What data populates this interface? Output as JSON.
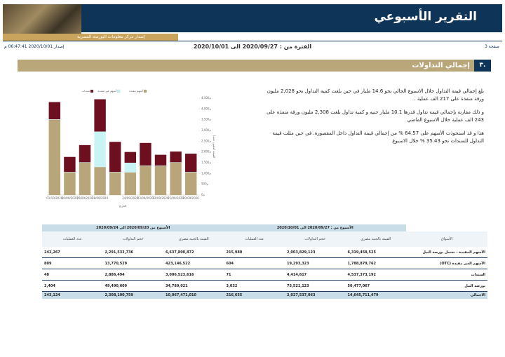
{
  "header": {
    "title": "التقرير الأسبوعي",
    "subtitle": "إصدار مركز معلومات البورصة المصرية",
    "page": "صفحة 3",
    "period": "الفترة من : 2020/09/27 الى 2020/10/01",
    "issued": "إصدار 2020/10/01 06:47:41 م"
  },
  "section": {
    "number": "٣.",
    "title": "إجمالي التداولات"
  },
  "paragraphs": [
    "بلغ إجمالي قيمة التداول خلال الاسبوع الحالي نحو 14.6 مليار في حين بلغت كمية التداول نحو 2,028 مليون ورقة منفذة على 217 الف عملية .",
    "و ذلك مقارنة بإجمالي قيمة تداول قدرها 10.1 مليار جنيه و كمية تداول بلغت 2,308 مليون ورقة منفذة على 243 الف عملية خلال الاسبوع الماضي",
    "هذا و قد استحوذت الأسهم على 64.57 % من إجمالي قيمة التداول داخل المقصورة. في حين مثلت قيمة التداول للسندات نحو 35.43 % خلال الاسبوع"
  ],
  "chart_data": {
    "type": "stacked_bar",
    "x_label": "التاريخ",
    "y_label": "القيمة (مليون جنيه)",
    "categories": [
      "01/10/2020",
      "30/09/2020",
      "29/09/2020",
      "28/09/2020",
      null,
      "24/09/2020",
      "23/09/2020",
      "22/09/2020",
      "21/09/2020",
      "20/09/2020"
    ],
    "series": [
      {
        "name": "أسهم مقيدة",
        "color": "#b8a67a",
        "values": [
          3500,
          1050,
          1500,
          1300,
          1050,
          1050,
          1350,
          1350,
          1500,
          1050
        ]
      },
      {
        "name": "أسهم غير مقيدة",
        "color": "#c8f4f6",
        "values": [
          20,
          20,
          20,
          1650,
          20,
          450,
          20,
          20,
          20,
          20
        ]
      },
      {
        "name": "سندات",
        "color": "#6d0f1e",
        "values": [
          800,
          700,
          800,
          1500,
          1400,
          500,
          1050,
          500,
          500,
          850
        ]
      }
    ],
    "ylim": [
      0,
      4500
    ],
    "yticks": [
      {
        "value": 0,
        "label": "0م"
      },
      {
        "value": 500,
        "label": "500م"
      },
      {
        "value": 1000,
        "label": "1,000م"
      },
      {
        "value": 1500,
        "label": "1,500م"
      },
      {
        "value": 2000,
        "label": "2,000م"
      },
      {
        "value": 2500,
        "label": "2,500م"
      },
      {
        "value": 3000,
        "label": "3,000م"
      },
      {
        "value": 3500,
        "label": "3,500م"
      },
      {
        "value": 4000,
        "label": "4,000م"
      },
      {
        "value": 4500,
        "label": "4,500م"
      }
    ],
    "grid": false,
    "legend": "top"
  },
  "table": {
    "header": "الأسواق",
    "groups": [
      {
        "label": "الأسبوع من : 2020/09/27 الى 2020/10/01",
        "columns": [
          "القيمة بالجنيه مصري",
          "حجم التداولات",
          "عدد العمليات"
        ]
      },
      {
        "label": "الأسبوع من 2020/09/20 الى 2020/09/24",
        "columns": [
          "القيمة بالجنيه مصري",
          "حجم التداولات",
          "عدد العمليات"
        ]
      }
    ],
    "rows": [
      {
        "market": "الأسهم المقيدة - تشمل بورصة النيل",
        "values": [
          "6,319,458,525",
          "2,003,829,123",
          "215,980",
          "6,637,800,872",
          "2,291,533,736",
          "242,267"
        ]
      },
      {
        "market": "الأسهم الغير مقيدة (OTC)",
        "values": [
          "1,788,879,762",
          "19,293,323",
          "604",
          "423,146,522",
          "13,770,529",
          "809"
        ]
      },
      {
        "market": "السندات",
        "values": [
          "4,537,373,192",
          "4,414,617",
          "71",
          "3,006,523,616",
          "2,886,494",
          "48"
        ]
      },
      {
        "market": "بورصة النيل",
        "values": [
          "50,477,067",
          "75,521,123",
          "3,032",
          "34,789,021",
          "49,490,609",
          "2,404"
        ]
      },
      {
        "market": "الاجمالي",
        "values": [
          "14,645,711,479",
          "2,027,537,063",
          "216,655",
          "10,067,471,010",
          "2,308,190,759",
          "243,124"
        ]
      }
    ]
  }
}
